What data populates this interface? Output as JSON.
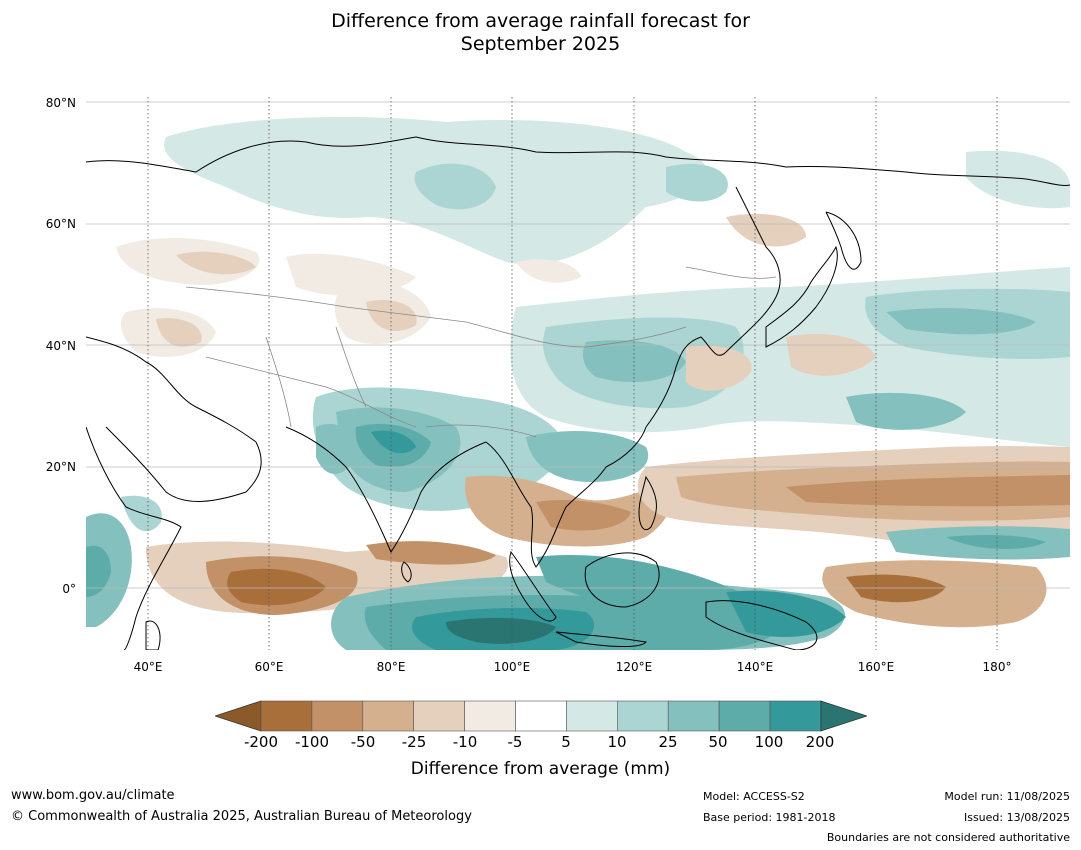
{
  "title_line1": "Difference from average rainfall forecast for",
  "title_line2": "September 2025",
  "lat_labels": [
    "80°N",
    "60°N",
    "40°N",
    "20°N",
    "0°"
  ],
  "lon_labels": [
    "40°E",
    "60°E",
    "80°E",
    "100°E",
    "120°E",
    "140°E",
    "160°E",
    "180°"
  ],
  "colorbar": {
    "ticks": [
      "-200",
      "-100",
      "-50",
      "-25",
      "-10",
      "-5",
      "5",
      "10",
      "25",
      "50",
      "100",
      "200"
    ],
    "colors": [
      "#8c5a2a",
      "#a86f3a",
      "#c29167",
      "#d4b08e",
      "#e4d0bd",
      "#f1ebe4",
      "#ffffff",
      "#d4e8e6",
      "#abd5d3",
      "#84c0bd",
      "#5eacaa",
      "#33999a",
      "#2a7471"
    ],
    "label": "Difference from average (mm)"
  },
  "footer": {
    "website": "www.bom.gov.au/climate",
    "copyright": "© Commonwealth of Australia 2025, Australian Bureau of Meteorology",
    "model": "Model: ACCESS-S2",
    "base_period": "Base period: 1981-2018",
    "model_run": "Model run: 11/08/2025",
    "issued": "Issued: 13/08/2025",
    "disclaimer": "Boundaries are not considered authoritative"
  }
}
